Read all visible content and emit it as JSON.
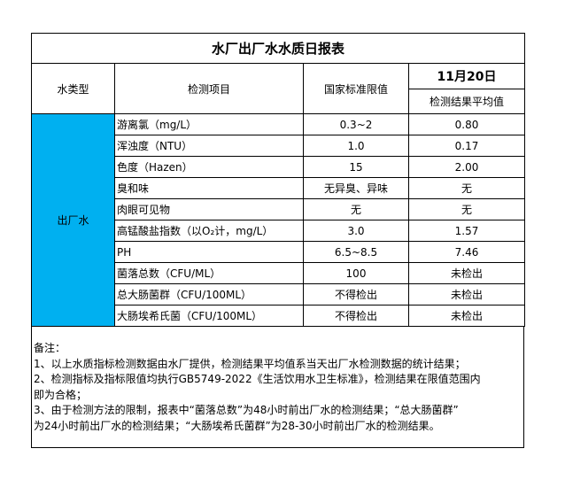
{
  "title": "水厂出厂水水质日报表",
  "headers": {
    "water_type": "水类型",
    "item": "检测项目",
    "limit": "国家标准限值",
    "date": "11月20日",
    "result": "检测结果平均值"
  },
  "water_type": "出厂水",
  "rows": [
    {
      "item": "游离氯（mg/L）",
      "limit": "0.3~2",
      "result": "0.80"
    },
    {
      "item": "浑浊度（NTU）",
      "limit": "1.0",
      "result": "0.17"
    },
    {
      "item": "色度（Hazen）",
      "limit": "15",
      "result": "2.00"
    },
    {
      "item": "臭和味",
      "limit": "无异臭、异味",
      "result": "无"
    },
    {
      "item": "肉眼可见物",
      "limit": "无",
      "result": "无"
    },
    {
      "item": "高锰酸盐指数（以O₂计，mg/L）",
      "limit": "3.0",
      "result": "1.57"
    },
    {
      "item": "PH",
      "limit": "6.5~8.5",
      "result": "7.46"
    },
    {
      "item": "菌落总数（CFU/ML）",
      "limit": "100",
      "result": "未检出"
    },
    {
      "item": "总大肠菌群（CFU/100ML）",
      "limit": "不得检出",
      "result": "未检出"
    },
    {
      "item": "大肠埃希氏菌（CFU/100ML）",
      "limit": "不得检出",
      "result": "未检出"
    }
  ],
  "notes": [
    "备注：",
    "1、以上水质指标检测数据由水厂提供，检测结果平均值系当天出厂水检测数据的统计结果；",
    "2、检测指标及指标限值均执行GB5749-2022《生活饮用水卫生标准》，检测结果在限值范围内",
    "即为合格；",
    "3、由于检测方法的限制，报表中“菌落总数”为48小时前出厂水的检测结果；“总大肠菌群”",
    "为24小时前出厂水的检测结果；“大肠埃希氏菌群”为28-30小时前出厂水的检测结果。"
  ],
  "colors": {
    "water_type_bg": "#00b0f0"
  }
}
